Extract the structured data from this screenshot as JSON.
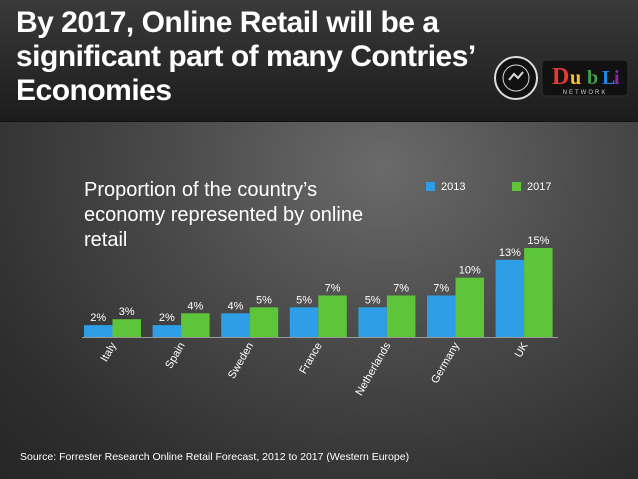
{
  "slide": {
    "title": "By 2017, Online Retail will be a significant part of many Contries’ Economies",
    "source": "Source: Forrester Research Online Retail Forecast, 2012 to 2017 (Western Europe)"
  },
  "logo": {
    "name": "DubLi",
    "tagline": "NETWORK",
    "colors": [
      "#e53935",
      "#fbc02d",
      "#43a047",
      "#1e88e5",
      "#8e24aa"
    ]
  },
  "colors": {
    "series_2013": "#2e9fe6",
    "series_2017": "#5ec43a"
  },
  "chart_data": {
    "type": "bar",
    "title": "Proportion of the country’s economy represented by online retail",
    "categories": [
      "Italy",
      "Spain",
      "Sweden",
      "France",
      "Netherlands",
      "Germany",
      "UK"
    ],
    "series": [
      {
        "name": "2013",
        "values": [
          2,
          2,
          4,
          5,
          5,
          7,
          13
        ],
        "labels": [
          "2%",
          "2%",
          "4%",
          "5%",
          "5%",
          "7%",
          "13%"
        ]
      },
      {
        "name": "2017",
        "values": [
          3,
          4,
          5,
          7,
          7,
          10,
          15
        ],
        "labels": [
          "3%",
          "4%",
          "5%",
          "7%",
          "7%",
          "10%",
          "15%"
        ]
      }
    ],
    "ylim": [
      0,
      15
    ],
    "grid": false,
    "legend": "top-right"
  }
}
